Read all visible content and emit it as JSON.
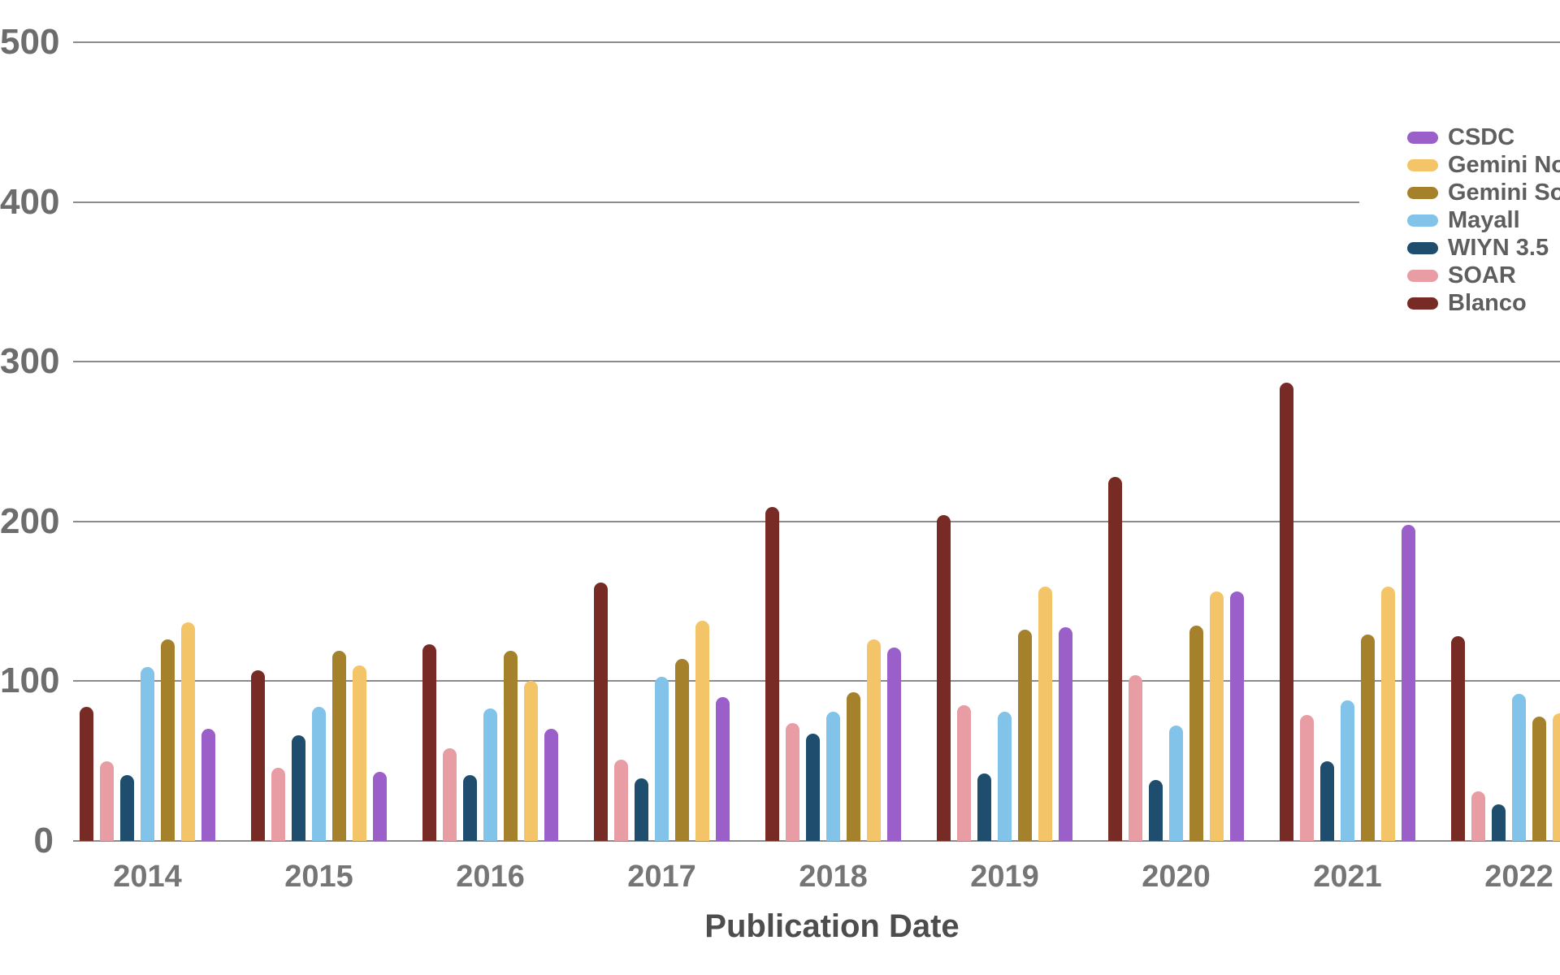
{
  "chart_data": {
    "type": "bar",
    "title": "",
    "xlabel": "Publication Date",
    "ylabel": "",
    "ylim": [
      0,
      500
    ],
    "yticks": [
      0,
      100,
      200,
      300,
      400,
      500
    ],
    "grid": "horizontal",
    "legend_position": "top-right",
    "categories": [
      "2014",
      "2015",
      "2016",
      "2017",
      "2018",
      "2019",
      "2020",
      "2021",
      "2022"
    ],
    "series": [
      {
        "name": "Blanco",
        "color": "#782b24",
        "values": [
          84,
          107,
          123,
          162,
          209,
          204,
          228,
          287,
          128
        ]
      },
      {
        "name": "SOAR",
        "color": "#e89ca3",
        "values": [
          50,
          46,
          58,
          51,
          74,
          85,
          104,
          79,
          31
        ]
      },
      {
        "name": "WIYN 3.5",
        "color": "#1f4d6d",
        "values": [
          41,
          66,
          41,
          39,
          67,
          42,
          38,
          50,
          23
        ]
      },
      {
        "name": "Mayall",
        "color": "#82c3ea",
        "values": [
          109,
          84,
          83,
          103,
          81,
          81,
          72,
          88,
          92
        ]
      },
      {
        "name": "Gemini South",
        "color": "#a5812b",
        "values": [
          126,
          119,
          119,
          114,
          93,
          132,
          135,
          129,
          78
        ]
      },
      {
        "name": "Gemini North",
        "color": "#f3c568",
        "values": [
          137,
          110,
          100,
          138,
          126,
          159,
          156,
          159,
          80
        ]
      },
      {
        "name": "CSDC",
        "color": "#9a5fc8",
        "values": [
          70,
          43,
          70,
          90,
          121,
          134,
          156,
          198,
          null
        ]
      }
    ],
    "legend": [
      "CSDC",
      "Gemini North",
      "Gemini South",
      "Mayall",
      "WIYN 3.5",
      "SOAR",
      "Blanco"
    ],
    "style": {
      "background": "#ffffff",
      "grid_color": "#8c8c8c",
      "tick_label_color": "#6d6d6d",
      "year_label_color": "#757575",
      "legend_text_color": "#5e5e5e",
      "xlabel_color": "#4d4d4d"
    }
  }
}
